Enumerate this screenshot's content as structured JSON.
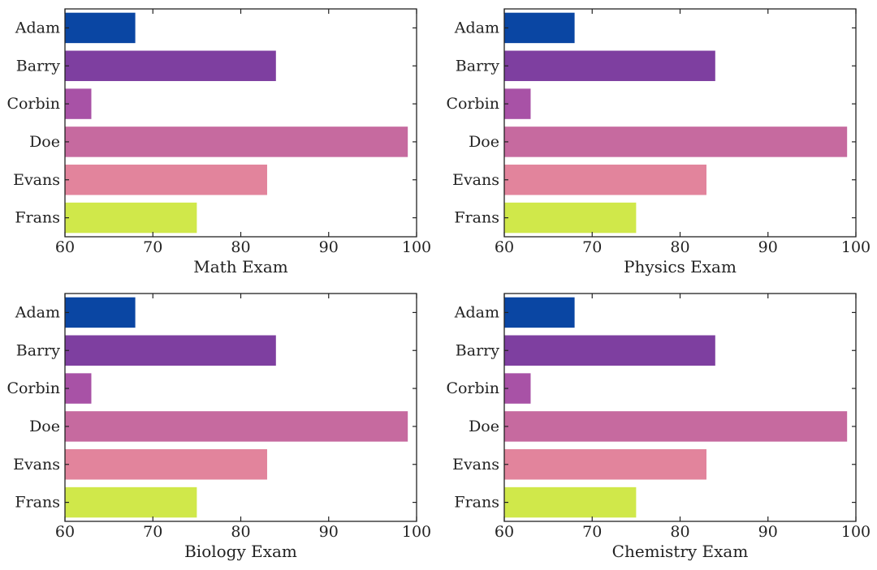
{
  "chart_data": [
    {
      "type": "bar",
      "orientation": "horizontal",
      "categories": [
        "Adam",
        "Barry",
        "Corbin",
        "Doe",
        "Evans",
        "Frans"
      ],
      "values": [
        68,
        84,
        63,
        99,
        83,
        75
      ],
      "xlabel": "Math Exam",
      "ylabel": "",
      "xlim": [
        60,
        100
      ],
      "xticks": [
        60,
        70,
        80,
        90,
        100
      ],
      "grid": false
    },
    {
      "type": "bar",
      "orientation": "horizontal",
      "categories": [
        "Adam",
        "Barry",
        "Corbin",
        "Doe",
        "Evans",
        "Frans"
      ],
      "values": [
        68,
        84,
        63,
        99,
        83,
        75
      ],
      "xlabel": "Physics Exam",
      "ylabel": "",
      "xlim": [
        60,
        100
      ],
      "xticks": [
        60,
        70,
        80,
        90,
        100
      ],
      "grid": false
    },
    {
      "type": "bar",
      "orientation": "horizontal",
      "categories": [
        "Adam",
        "Barry",
        "Corbin",
        "Doe",
        "Evans",
        "Frans"
      ],
      "values": [
        68,
        84,
        63,
        99,
        83,
        75
      ],
      "xlabel": "Biology Exam",
      "ylabel": "",
      "xlim": [
        60,
        100
      ],
      "xticks": [
        60,
        70,
        80,
        90,
        100
      ],
      "grid": false
    },
    {
      "type": "bar",
      "orientation": "horizontal",
      "categories": [
        "Adam",
        "Barry",
        "Corbin",
        "Doe",
        "Evans",
        "Frans"
      ],
      "values": [
        68,
        84,
        63,
        99,
        83,
        75
      ],
      "xlabel": "Chemistry Exam",
      "ylabel": "",
      "xlim": [
        60,
        100
      ],
      "xticks": [
        60,
        70,
        80,
        90,
        100
      ],
      "grid": false
    }
  ],
  "colors": {
    "bars": [
      "#0a46a3",
      "#7e3fa0",
      "#a852a6",
      "#c66a9f",
      "#e2849c",
      "#d0e84a"
    ],
    "frame": "#222222",
    "background": "#ffffff"
  }
}
